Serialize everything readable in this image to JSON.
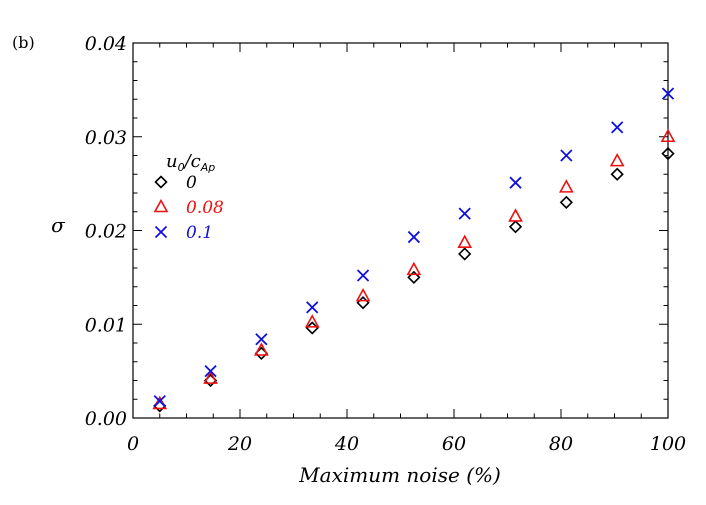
{
  "chart_data": {
    "type": "scatter",
    "panel_label": "(b)",
    "xlabel": "Maximum noise (%)",
    "ylabel": "σ",
    "xlim": [
      0,
      100
    ],
    "ylim": [
      0.0,
      0.04
    ],
    "xticks": [
      0,
      20,
      40,
      60,
      80,
      100
    ],
    "xtick_labels": [
      "0",
      "20",
      "40",
      "60",
      "80",
      "100"
    ],
    "yticks": [
      0.0,
      0.01,
      0.02,
      0.03,
      0.04
    ],
    "ytick_labels": [
      "0.00",
      "0.01",
      "0.02",
      "0.03",
      "0.04"
    ],
    "grid": false,
    "legend": {
      "placement": "left",
      "title_main": "u",
      "title_sub0": "0",
      "title_slash": "/c",
      "title_sub1": "Ap"
    },
    "x": [
      5,
      14.5,
      24,
      33.5,
      43,
      52.5,
      62,
      71.5,
      81,
      90.5,
      100
    ],
    "series": [
      {
        "name": "0",
        "marker": "diamond",
        "color": "#000000",
        "values": [
          0.0013,
          0.004,
          0.0069,
          0.0096,
          0.0123,
          0.015,
          0.0175,
          0.0204,
          0.023,
          0.026,
          0.0282
        ]
      },
      {
        "name": "0.08",
        "marker": "triangle",
        "color": "#ee1111",
        "values": [
          0.0015,
          0.0042,
          0.0072,
          0.0102,
          0.013,
          0.0158,
          0.0187,
          0.0215,
          0.0246,
          0.0274,
          0.03
        ]
      },
      {
        "name": "0.1",
        "marker": "x",
        "color": "#1111dd",
        "values": [
          0.0018,
          0.005,
          0.0084,
          0.0118,
          0.0152,
          0.0193,
          0.0218,
          0.0251,
          0.028,
          0.031,
          0.0346
        ]
      }
    ]
  }
}
